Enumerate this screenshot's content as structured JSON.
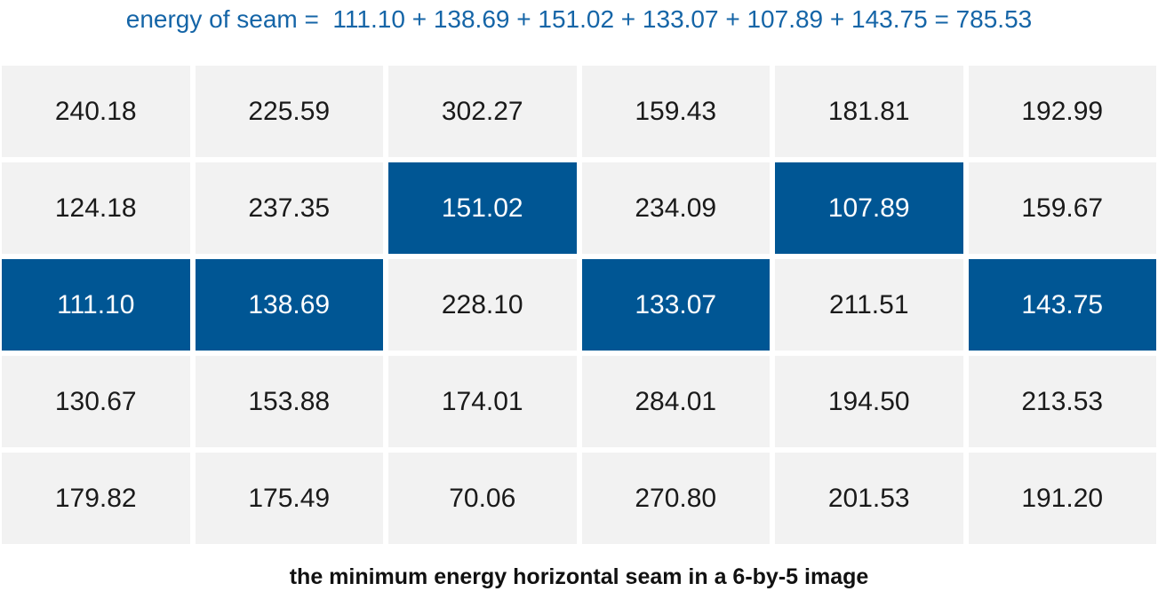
{
  "figure": {
    "title": "energy of seam =  111.10 + 138.69 + 151.02 + 133.07 + 107.89 + 143.75 = 785.53",
    "caption": "the minimum energy horizontal seam in a 6-by-5 image"
  },
  "colors": {
    "background": "#ffffff",
    "title_blue": "#1565a7",
    "seam_blue": "#005694",
    "cell_gray": "#f2f2f2",
    "text_dark": "#1a1a1a",
    "seam_text": "#ffffff"
  },
  "grid": {
    "rows": 5,
    "cols": 6,
    "values": [
      [
        "240.18",
        "225.59",
        "302.27",
        "159.43",
        "181.81",
        "192.99"
      ],
      [
        "124.18",
        "237.35",
        "151.02",
        "234.09",
        "107.89",
        "159.67"
      ],
      [
        "111.10",
        "138.69",
        "228.10",
        "133.07",
        "211.51",
        "143.75"
      ],
      [
        "130.67",
        "153.88",
        "174.01",
        "284.01",
        "194.50",
        "213.53"
      ],
      [
        "179.82",
        "175.49",
        "70.06",
        "270.80",
        "201.53",
        "191.20"
      ]
    ],
    "seam_cells": [
      [
        2,
        0
      ],
      [
        2,
        1
      ],
      [
        1,
        2
      ],
      [
        2,
        3
      ],
      [
        1,
        4
      ],
      [
        2,
        5
      ]
    ],
    "seam_values": [
      "111.10",
      "138.69",
      "151.02",
      "133.07",
      "107.89",
      "143.75"
    ],
    "seam_total": "785.53"
  }
}
